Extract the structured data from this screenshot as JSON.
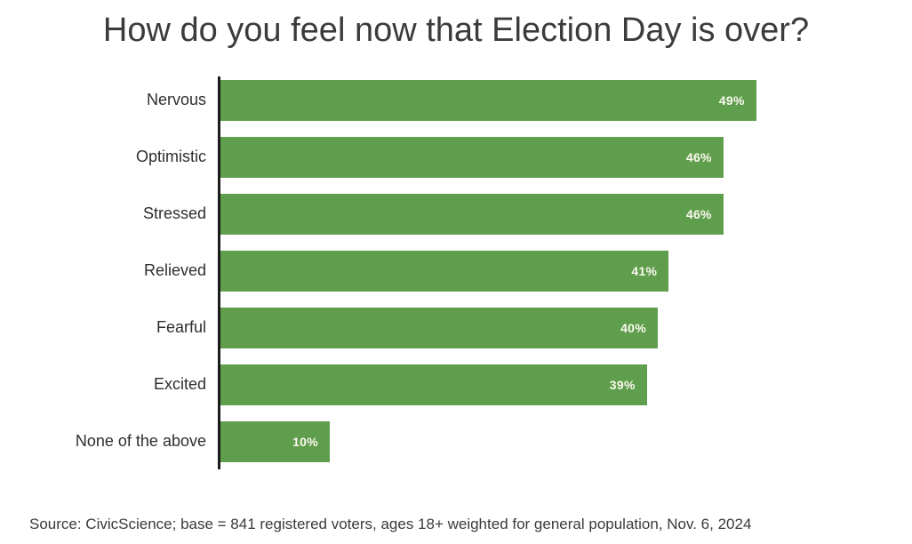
{
  "chart_data": {
    "type": "bar",
    "orientation": "horizontal",
    "title": "How do you feel now that Election Day is over?",
    "categories": [
      "Nervous",
      "Optimistic",
      "Stressed",
      "Relieved",
      "Fearful",
      "Excited",
      "None of the above"
    ],
    "values": [
      49,
      46,
      46,
      41,
      40,
      39,
      10
    ],
    "value_labels": [
      "49%",
      "46%",
      "46%",
      "41%",
      "40%",
      "39%",
      "10%"
    ],
    "xlabel": "",
    "ylabel": "",
    "xlim": [
      0,
      55
    ],
    "grid": false,
    "legend_position": "none",
    "bar_color": "#5f9e4c",
    "value_label_color": "#fbf9ef",
    "axis_color": "#1c1c1c",
    "title_color": "#3b3b3b"
  },
  "source_note": "Source: CivicScience; base = 841 registered voters, ages 18+ weighted for general population, Nov. 6, 2024"
}
